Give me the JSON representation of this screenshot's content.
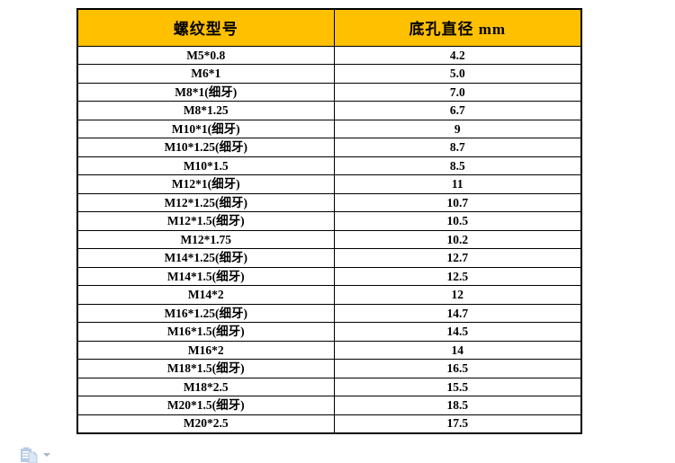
{
  "page": {
    "background_color": "#ffffff"
  },
  "table": {
    "header": {
      "model_label": "螺纹型号",
      "diameter_label": "底孔直径 mm",
      "bg_color": "#FFC000",
      "text_color": "#000000",
      "border_color": "#000000"
    },
    "rows": [
      {
        "model": "M5*0.8",
        "diameter": "4.2"
      },
      {
        "model": "M6*1",
        "diameter": "5.0"
      },
      {
        "model": "M8*1(细牙)",
        "diameter": "7.0"
      },
      {
        "model": "M8*1.25",
        "diameter": "6.7"
      },
      {
        "model": "M10*1(细牙)",
        "diameter": "9"
      },
      {
        "model": "M10*1.25(细牙)",
        "diameter": "8.7"
      },
      {
        "model": "M10*1.5",
        "diameter": "8.5"
      },
      {
        "model": "M12*1(细牙)",
        "diameter": "11"
      },
      {
        "model": "M12*1.25(细牙)",
        "diameter": "10.7"
      },
      {
        "model": "M12*1.5(细牙)",
        "diameter": "10.5"
      },
      {
        "model": "M12*1.75",
        "diameter": "10.2"
      },
      {
        "model": "M14*1.25(细牙)",
        "diameter": "12.7"
      },
      {
        "model": "M14*1.5(细牙)",
        "diameter": "12.5"
      },
      {
        "model": "M14*2",
        "diameter": "12"
      },
      {
        "model": "M16*1.25(细牙)",
        "diameter": "14.7"
      },
      {
        "model": "M16*1.5(细牙)",
        "diameter": "14.5"
      },
      {
        "model": "M16*2",
        "diameter": "14"
      },
      {
        "model": "M18*1.5(细牙)",
        "diameter": "16.5"
      },
      {
        "model": "M18*2.5",
        "diameter": "15.5"
      },
      {
        "model": "M20*1.5(细牙)",
        "diameter": "18.5"
      },
      {
        "model": "M20*2.5",
        "diameter": "17.5"
      }
    ]
  },
  "paste_options": {
    "clipboard_icon": "clipboard-paste-icon",
    "dropdown_icon": "chevron-down-icon",
    "icon_color": "#b6cbe5",
    "arrow_color": "#aab6c6"
  }
}
